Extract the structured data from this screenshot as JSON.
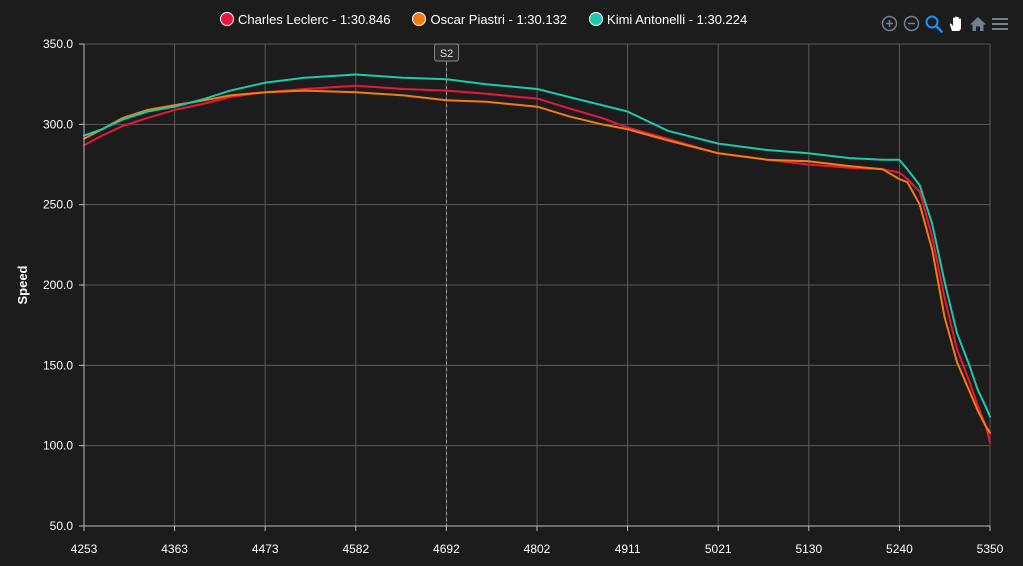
{
  "legend": [
    {
      "label": "Charles Leclerc - 1:30.846",
      "color": "#e8173d"
    },
    {
      "label": "Oscar Piastri - 1:30.132",
      "color": "#f47c12"
    },
    {
      "label": "Kimi Antonelli - 1:30.224",
      "color": "#1ec9a8"
    }
  ],
  "toolbar": {
    "icons": [
      "zoom-in-icon",
      "zoom-out-icon",
      "zoom-selection-icon",
      "pan-hand-icon",
      "home-reset-icon",
      "menu-icon"
    ],
    "active_color": "#1e90ff",
    "inactive_color": "#6e8192"
  },
  "chart_data": {
    "type": "line",
    "title": "",
    "xlabel": "",
    "ylabel": "Speed",
    "xlim": [
      4253,
      5350
    ],
    "ylim": [
      50,
      350
    ],
    "x_ticks": [
      "4253",
      "4363",
      "4473",
      "4582",
      "4692",
      "4802",
      "4911",
      "5021",
      "5130",
      "5240",
      "5350"
    ],
    "y_ticks": [
      "50.0",
      "100.0",
      "150.0",
      "200.0",
      "250.0",
      "300.0",
      "350.0"
    ],
    "grid": true,
    "legend_position": "top",
    "annotations": [
      {
        "type": "vertical-dashed-line",
        "x": 4692,
        "label": "S2"
      }
    ],
    "series": [
      {
        "name": "Charles Leclerc - 1:30.846",
        "color": "#e8173d",
        "x": [
          4253,
          4275,
          4300,
          4330,
          4363,
          4400,
          4430,
          4473,
          4520,
          4582,
          4640,
          4692,
          4740,
          4802,
          4840,
          4880,
          4911,
          4960,
          5021,
          5080,
          5130,
          5180,
          5220,
          5240,
          5250,
          5265,
          5280,
          5295,
          5310,
          5325,
          5335,
          5345,
          5350
        ],
        "values": [
          287,
          293,
          299,
          304,
          309,
          313,
          317,
          320,
          322,
          324,
          322,
          321,
          319,
          316,
          310,
          304,
          298,
          291,
          282,
          278,
          275,
          273,
          272,
          270,
          266,
          258,
          230,
          192,
          160,
          140,
          125,
          112,
          102
        ]
      },
      {
        "name": "Oscar Piastri - 1:30.132",
        "color": "#f47c12",
        "x": [
          4253,
          4275,
          4300,
          4330,
          4363,
          4400,
          4430,
          4473,
          4520,
          4582,
          4640,
          4692,
          4740,
          4802,
          4840,
          4880,
          4911,
          4960,
          5021,
          5080,
          5130,
          5180,
          5220,
          5240,
          5250,
          5265,
          5280,
          5295,
          5310,
          5325,
          5335,
          5345,
          5350
        ],
        "values": [
          291,
          297,
          304,
          309,
          312,
          315,
          318,
          320,
          321,
          320,
          318,
          315,
          314,
          311,
          305,
          300,
          297,
          290,
          282,
          278,
          277,
          274,
          272,
          266,
          264,
          250,
          222,
          180,
          152,
          134,
          122,
          112,
          108
        ]
      },
      {
        "name": "Kimi Antonelli - 1:30.224",
        "color": "#1ec9a8",
        "x": [
          4253,
          4275,
          4300,
          4330,
          4363,
          4400,
          4430,
          4473,
          4520,
          4582,
          4640,
          4692,
          4740,
          4802,
          4840,
          4880,
          4911,
          4960,
          5021,
          5080,
          5130,
          5180,
          5220,
          5240,
          5250,
          5265,
          5280,
          5295,
          5310,
          5325,
          5335,
          5345,
          5350
        ],
        "values": [
          293,
          297,
          303,
          308,
          311,
          316,
          321,
          326,
          329,
          331,
          329,
          328,
          325,
          322,
          317,
          312,
          308,
          296,
          288,
          284,
          282,
          279,
          278,
          278,
          272,
          262,
          238,
          202,
          170,
          150,
          135,
          124,
          118
        ]
      }
    ]
  }
}
